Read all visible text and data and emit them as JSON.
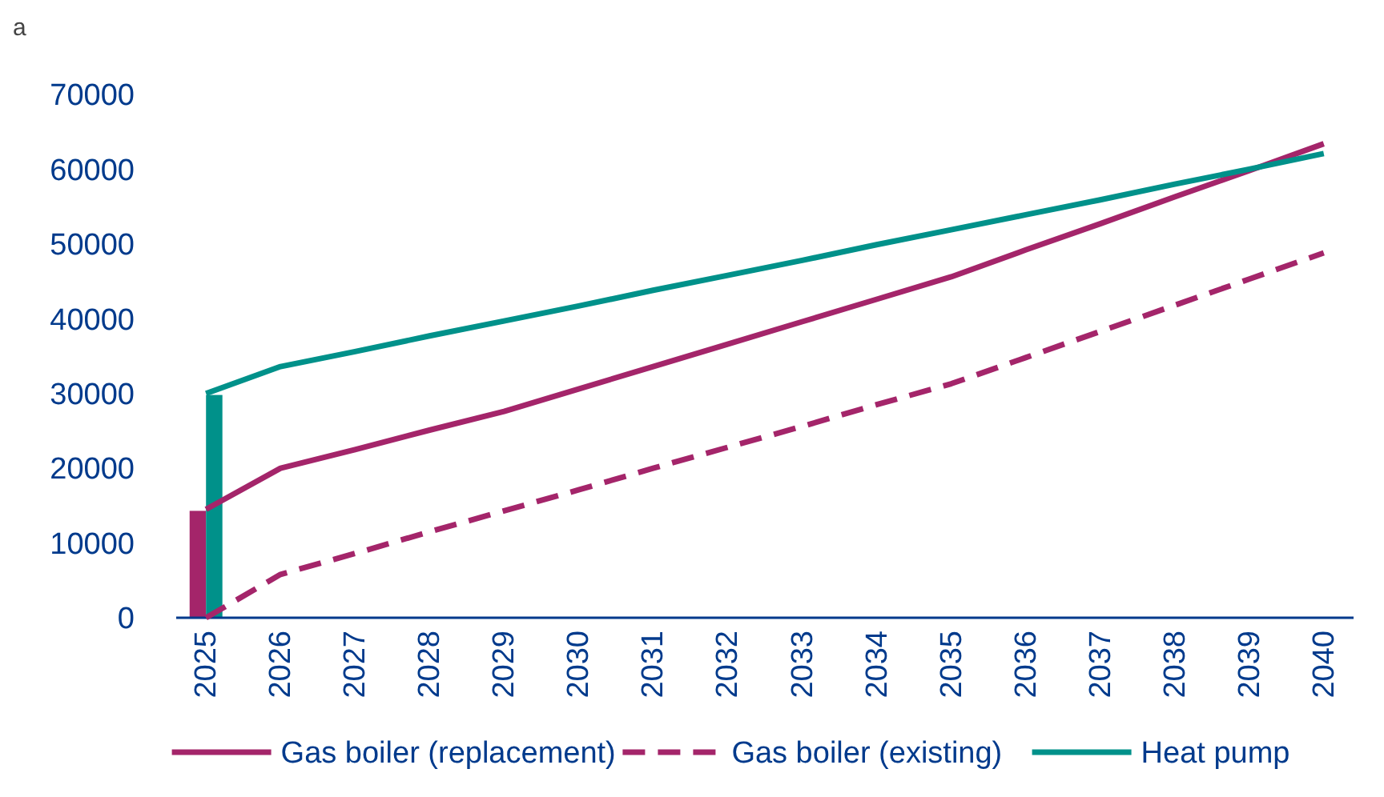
{
  "chart_data": {
    "type": "line",
    "annotations": [
      "a"
    ],
    "categories": [
      "2025",
      "2026",
      "2027",
      "2028",
      "2029",
      "2030",
      "2031",
      "2032",
      "2033",
      "2034",
      "2035",
      "2036",
      "2037",
      "2038",
      "2039",
      "2040"
    ],
    "series": [
      {
        "type": "bar",
        "color": "#a4256a",
        "values": [
          14300,
          null,
          null,
          null,
          null,
          null,
          null,
          null,
          null,
          null,
          null,
          null,
          null,
          null,
          null,
          null
        ]
      },
      {
        "type": "bar",
        "color": "#00918a",
        "values": [
          29800,
          null,
          null,
          null,
          null,
          null,
          null,
          null,
          null,
          null,
          null,
          null,
          null,
          null,
          null,
          null
        ]
      },
      {
        "name": "Gas boiler (replacement)",
        "color": "#a4256a",
        "line_style": "solid",
        "values": [
          14500,
          20000,
          22500,
          25100,
          27600,
          30600,
          33600,
          36600,
          39600,
          42600,
          45600,
          49200,
          52700,
          56300,
          59800,
          63400
        ]
      },
      {
        "name": "Gas boiler (existing)",
        "color": "#a4256a",
        "line_style": "dashed",
        "values": [
          0,
          5800,
          8600,
          11500,
          14300,
          17100,
          20000,
          22800,
          25600,
          28500,
          31300,
          34800,
          38300,
          41800,
          45300,
          48800
        ]
      },
      {
        "name": "Heat pump",
        "color": "#00918a",
        "line_style": "solid",
        "values": [
          30000,
          33600,
          35600,
          37700,
          39700,
          41700,
          43800,
          45800,
          47800,
          49900,
          51900,
          53900,
          55900,
          58000,
          60000,
          62100
        ]
      }
    ],
    "ylim": [
      0,
      70000
    ],
    "yticks": [
      0,
      10000,
      20000,
      30000,
      40000,
      50000,
      60000,
      70000
    ],
    "grid": false,
    "legend": "bottom",
    "marker": "none"
  }
}
